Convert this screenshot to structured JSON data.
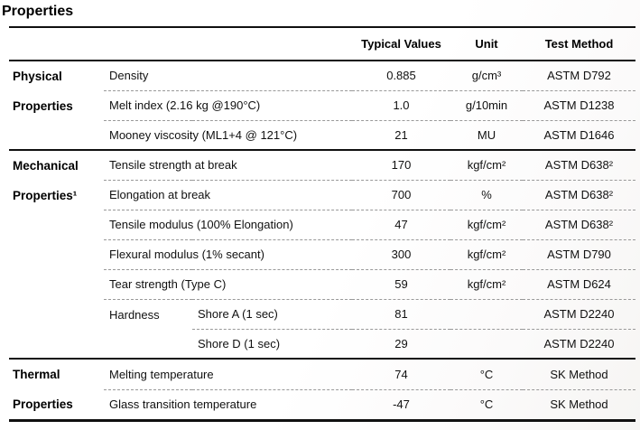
{
  "page_title": "Properties",
  "table": {
    "headers": {
      "typical_values": "Typical Values",
      "unit": "Unit",
      "test_method": "Test Method"
    },
    "sections": [
      {
        "group": [
          "Physical",
          "Properties"
        ],
        "rows": [
          {
            "property": "Density",
            "value": "0.885",
            "unit": "g/cm³",
            "method": "ASTM D792"
          },
          {
            "property": "Melt index (2.16 kg @190°C)",
            "value": "1.0",
            "unit": "g/10min",
            "method": "ASTM D1238"
          },
          {
            "property": "Mooney viscosity (ML1+4 @ 121°C)",
            "value": "21",
            "unit": "MU",
            "method": "ASTM D1646"
          }
        ]
      },
      {
        "group": [
          "Mechanical",
          "Properties¹"
        ],
        "rows": [
          {
            "property": "Tensile strength at break",
            "value": "170",
            "unit": "kgf/cm²",
            "method": "ASTM D638²"
          },
          {
            "property": "Elongation at break",
            "value": "700",
            "unit": "%",
            "method": "ASTM D638²"
          },
          {
            "property": "Tensile modulus (100% Elongation)",
            "value": "47",
            "unit": "kgf/cm²",
            "method": "ASTM D638²"
          },
          {
            "property": "Flexural modulus (1% secant)",
            "value": "300",
            "unit": "kgf/cm²",
            "method": "ASTM D790"
          },
          {
            "property": "Tear strength (Type C)",
            "value": "59",
            "unit": "kgf/cm²",
            "method": "ASTM D624"
          },
          {
            "property": "Hardness",
            "sub_property": "Shore A (1 sec)",
            "value": "81",
            "unit": "",
            "method": "ASTM D2240"
          },
          {
            "sub_property": "Shore D (1 sec)",
            "value": "29",
            "unit": "",
            "method": "ASTM D2240"
          }
        ]
      },
      {
        "group": [
          "Thermal",
          "Properties"
        ],
        "rows": [
          {
            "property": "Melting temperature",
            "value": "74",
            "unit": "°C",
            "method": "SK Method"
          },
          {
            "property": "Glass transition temperature",
            "value": "-47",
            "unit": "°C",
            "method": "SK Method"
          }
        ]
      }
    ]
  }
}
